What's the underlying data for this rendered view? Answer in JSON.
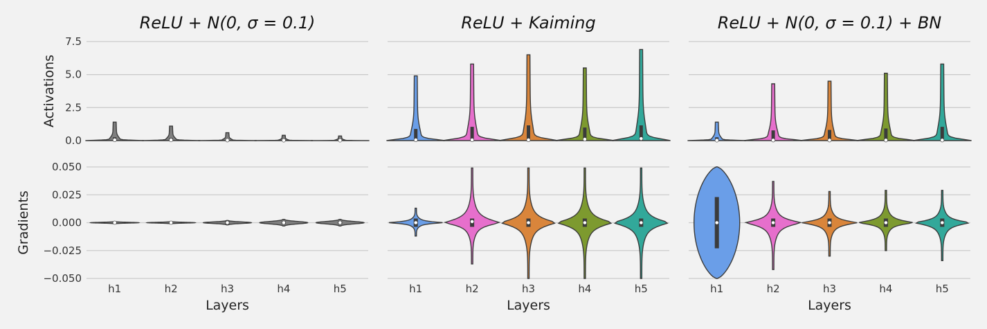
{
  "chart_data": {
    "type": "violin",
    "layers": [
      "h1",
      "h2",
      "h3",
      "h4",
      "h5"
    ],
    "xlabel": "Layers",
    "row_labels": [
      "Activations",
      "Gradients"
    ],
    "activations_ylim": [
      0,
      7.5
    ],
    "activations_yticks": [
      "0.0",
      "2.5",
      "5.0",
      "7.5"
    ],
    "gradients_ylim": [
      -0.05,
      0.05
    ],
    "gradients_yticks": [
      "−0.050",
      "−0.025",
      "0.000",
      "0.025",
      "0.050"
    ],
    "grid": true,
    "colors": {
      "h1": "#6a9ee8",
      "h2": "#e66fcc",
      "h3": "#d9853b",
      "h4": "#7d9a2f",
      "h5": "#32a89a",
      "outline": "#3b3b3b",
      "background": "#f2f2f2",
      "grid": "#cbcbcb"
    },
    "panels": [
      {
        "title_parts": [
          "ReLU",
          " + ",
          "N",
          "(0, ",
          "σ",
          " = 0.1)"
        ],
        "activations": [
          {
            "layer": "h1",
            "max": 1.4,
            "median": 0.05
          },
          {
            "layer": "h2",
            "max": 1.1,
            "median": 0.04
          },
          {
            "layer": "h3",
            "max": 0.6,
            "median": 0.03
          },
          {
            "layer": "h4",
            "max": 0.4,
            "median": 0.02
          },
          {
            "layer": "h5",
            "max": 0.35,
            "median": 0.02
          }
        ],
        "gradients": [
          {
            "layer": "h1",
            "min": -0.001,
            "max": 0.001,
            "median": 0.0
          },
          {
            "layer": "h2",
            "min": -0.001,
            "max": 0.001,
            "median": 0.0
          },
          {
            "layer": "h3",
            "min": -0.002,
            "max": 0.002,
            "median": 0.0
          },
          {
            "layer": "h4",
            "min": -0.003,
            "max": 0.003,
            "median": 0.0
          },
          {
            "layer": "h5",
            "min": -0.003,
            "max": 0.003,
            "median": 0.0
          }
        ]
      },
      {
        "title_parts": [
          "ReLU",
          " + ",
          "Kaiming"
        ],
        "activations": [
          {
            "layer": "h1",
            "max": 4.9,
            "median": 0.05
          },
          {
            "layer": "h2",
            "max": 5.8,
            "median": 0.05
          },
          {
            "layer": "h3",
            "max": 6.5,
            "median": 0.05
          },
          {
            "layer": "h4",
            "max": 5.5,
            "median": 0.1
          },
          {
            "layer": "h5",
            "max": 6.9,
            "median": 0.15
          }
        ],
        "gradients": [
          {
            "layer": "h1",
            "min": -0.012,
            "max": 0.013,
            "median": 0.0
          },
          {
            "layer": "h2",
            "min": -0.037,
            "max": 0.049,
            "median": 0.001
          },
          {
            "layer": "h3",
            "min": -0.05,
            "max": 0.049,
            "median": 0.0
          },
          {
            "layer": "h4",
            "min": -0.05,
            "max": 0.049,
            "median": 0.0
          },
          {
            "layer": "h5",
            "min": -0.05,
            "max": 0.049,
            "median": 0.0
          }
        ]
      },
      {
        "title_parts": [
          "ReLU",
          " + ",
          "N",
          "(0, ",
          "σ",
          " = 0.1) + ",
          "BN"
        ],
        "activations": [
          {
            "layer": "h1",
            "max": 1.4,
            "median": 0.02
          },
          {
            "layer": "h2",
            "max": 4.3,
            "median": 0.03
          },
          {
            "layer": "h3",
            "max": 4.5,
            "median": 0.03
          },
          {
            "layer": "h4",
            "max": 5.1,
            "median": 0.03
          },
          {
            "layer": "h5",
            "max": 5.8,
            "median": 0.03
          }
        ],
        "gradients": [
          {
            "layer": "h1",
            "min": -0.05,
            "max": 0.05,
            "median": 0.0
          },
          {
            "layer": "h2",
            "min": -0.042,
            "max": 0.037,
            "median": 0.0
          },
          {
            "layer": "h3",
            "min": -0.03,
            "max": 0.028,
            "median": 0.0
          },
          {
            "layer": "h4",
            "min": -0.025,
            "max": 0.029,
            "median": 0.0
          },
          {
            "layer": "h5",
            "min": -0.034,
            "max": 0.029,
            "median": 0.0
          }
        ]
      }
    ]
  }
}
